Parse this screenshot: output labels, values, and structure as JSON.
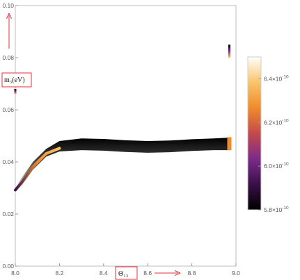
{
  "chart_data": {
    "type": "density",
    "title": "",
    "xlabel": "Θ₁₃",
    "ylabel": "m₃(eV)",
    "xlim": [
      8.0,
      9.0
    ],
    "ylim": [
      0.0,
      0.1
    ],
    "x_ticks": [
      "8.0",
      "8.2",
      "8.4",
      "8.6",
      "8.8",
      "9.0"
    ],
    "y_ticks": [
      "0.00",
      "0.02",
      "0.04",
      "0.06",
      "0.08",
      "0.10"
    ],
    "x_tick_values": [
      8.0,
      8.2,
      8.4,
      8.6,
      8.8,
      9.0
    ],
    "y_tick_values": [
      0.0,
      0.02,
      0.04,
      0.06,
      0.08,
      0.1
    ],
    "grid": false,
    "band": {
      "theta": [
        8.0,
        8.03,
        8.08,
        8.14,
        8.2,
        8.3,
        8.4,
        8.5,
        8.6,
        8.7,
        8.8,
        8.9,
        8.97
      ],
      "m3_lower": [
        0.028,
        0.031,
        0.037,
        0.042,
        0.044,
        0.0445,
        0.0443,
        0.0438,
        0.0435,
        0.0437,
        0.0442,
        0.0445,
        0.0445
      ],
      "m3_upper": [
        0.03,
        0.034,
        0.04,
        0.045,
        0.048,
        0.049,
        0.0488,
        0.0483,
        0.048,
        0.0482,
        0.0487,
        0.049,
        0.0493
      ]
    },
    "isolated_points": [
      {
        "theta": 8.97,
        "m3_from": 0.08,
        "m3_to": 0.085
      },
      {
        "theta": 8.0,
        "m3_from": 0.066,
        "m3_to": 0.068
      }
    ],
    "colorbar": {
      "range": [
        5.8e-10,
        6.5e-10
      ],
      "tick_values": [
        5.8e-10,
        6e-10,
        6.2e-10,
        6.4e-10
      ],
      "tick_labels": [
        "5.8×10",
        "6.0×10",
        "6.2×10",
        "6.4×10"
      ],
      "tick_exponent": "-10",
      "colors": [
        "#000000",
        "#3a1048",
        "#7d2a8a",
        "#c4494c",
        "#f08b2a",
        "#f9c46a",
        "#ffffff"
      ]
    }
  },
  "annotations": {
    "y_axis_label": "m₃(eV)",
    "x_axis_label": "Θ₁₃",
    "arrow_color": "#e0313a"
  }
}
